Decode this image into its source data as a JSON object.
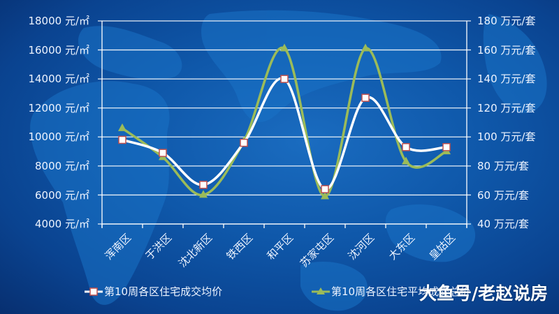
{
  "chart_data": {
    "type": "line",
    "title": "",
    "categories": [
      "浑南区",
      "于洪区",
      "沈北新区",
      "铁西区",
      "和平区",
      "苏家屯区",
      "沈河区",
      "大东区",
      "皇姑区"
    ],
    "series": [
      {
        "name": "第10周各区住宅成交均价",
        "axis": "left",
        "unit": "元/㎡",
        "marker": "square",
        "color": "#ffffff",
        "marker_border": "#c0504d",
        "values": [
          9800,
          8900,
          6700,
          9600,
          14000,
          6400,
          12700,
          9300,
          9300
        ]
      },
      {
        "name": "第10周各区住宅平均成交总价",
        "axis": "right",
        "unit": "万元/套",
        "marker": "triangle",
        "color": "#9bbb59",
        "values": [
          106,
          86,
          60,
          97,
          161,
          59,
          161,
          83,
          90
        ]
      }
    ],
    "left_axis": {
      "ylim": [
        4000,
        18000
      ],
      "ticks": [
        "18000 元/㎡",
        "16000 元/㎡",
        "14000 元/㎡",
        "12000 元/㎡",
        "10000 元/㎡",
        "8000 元/㎡",
        "6000 元/㎡",
        "4000 元/㎡"
      ]
    },
    "right_axis": {
      "ylim": [
        40,
        180
      ],
      "ticks": [
        "180 万元/套",
        "160 万元/套",
        "140 万元/套",
        "120 万元/套",
        "100 万元/套",
        "80 万元/套",
        "60 万元/套",
        "40 万元/套"
      ]
    },
    "grid": true,
    "legend_position": "bottom",
    "smooth": true
  },
  "legend": {
    "item1": "第10周各区住宅成交均价",
    "item2": "第10周各区住宅平均成交总价"
  },
  "watermark": "大鱼号/老赵说房",
  "colors": {
    "background": "#0f58aa",
    "series1": "#ffffff",
    "series1_marker_border": "#c0504d",
    "series2": "#9bbb59",
    "grid": "#ffffff"
  }
}
